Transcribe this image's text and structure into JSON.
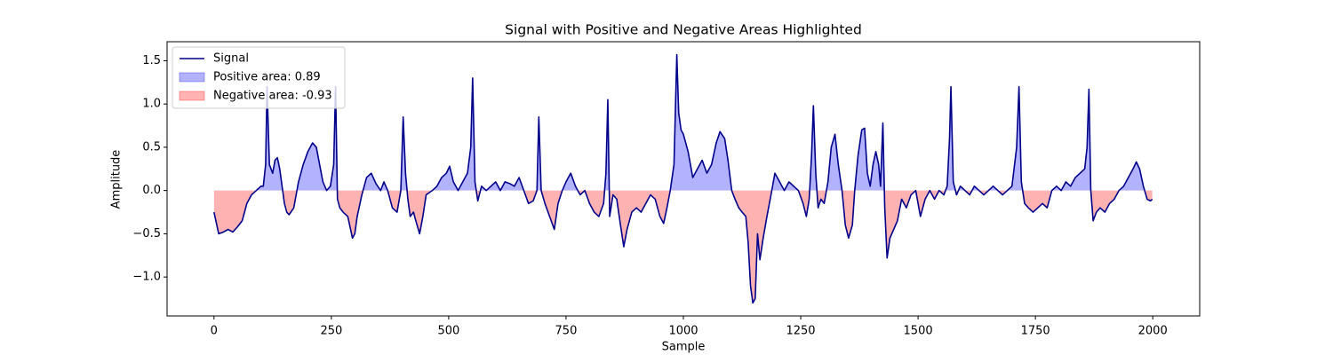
{
  "chart_data": {
    "type": "line",
    "title": "Signal with Positive and Negative Areas Highlighted",
    "xlabel": "Sample",
    "ylabel": "Amplitude",
    "x": [
      0,
      10,
      20,
      30,
      40,
      50,
      60,
      70,
      80,
      90,
      100,
      105,
      110,
      113,
      118,
      125,
      130,
      135,
      140,
      145,
      150,
      155,
      160,
      170,
      180,
      190,
      200,
      210,
      218,
      225,
      232,
      240,
      248,
      255,
      259,
      263,
      268,
      275,
      285,
      295,
      300,
      305,
      315,
      325,
      335,
      345,
      355,
      362,
      370,
      380,
      390,
      398,
      403,
      408,
      413,
      418,
      425,
      430,
      438,
      445,
      452,
      465,
      475,
      485,
      495,
      502,
      510,
      520,
      530,
      540,
      547,
      551,
      556,
      562,
      570,
      580,
      590,
      600,
      610,
      620,
      630,
      640,
      650,
      660,
      670,
      680,
      688,
      692,
      697,
      705,
      715,
      725,
      733,
      742,
      750,
      760,
      770,
      780,
      790,
      800,
      810,
      820,
      830,
      835,
      839,
      843,
      850,
      858,
      866,
      873,
      880,
      890,
      900,
      910,
      920,
      930,
      940,
      950,
      958,
      965,
      972,
      980,
      986,
      990,
      995,
      1000,
      1010,
      1020,
      1030,
      1040,
      1050,
      1060,
      1070,
      1078,
      1088,
      1095,
      1103,
      1110,
      1118,
      1125,
      1133,
      1138,
      1143,
      1148,
      1153,
      1158,
      1163,
      1170,
      1178,
      1185,
      1195,
      1205,
      1215,
      1225,
      1235,
      1245,
      1255,
      1262,
      1268,
      1273,
      1277,
      1282,
      1287,
      1293,
      1300,
      1308,
      1315,
      1323,
      1330,
      1338,
      1345,
      1352,
      1360,
      1365,
      1372,
      1380,
      1386,
      1392,
      1398,
      1404,
      1410,
      1416,
      1420,
      1425,
      1429,
      1434,
      1440,
      1448,
      1456,
      1465,
      1475,
      1485,
      1495,
      1505,
      1515,
      1525,
      1535,
      1545,
      1555,
      1562,
      1567,
      1570,
      1575,
      1582,
      1590,
      1600,
      1610,
      1620,
      1630,
      1640,
      1650,
      1660,
      1670,
      1680,
      1690,
      1700,
      1710,
      1715,
      1720,
      1727,
      1735,
      1745,
      1755,
      1765,
      1775,
      1785,
      1795,
      1805,
      1815,
      1825,
      1835,
      1845,
      1855,
      1860,
      1864,
      1868,
      1873,
      1880,
      1888,
      1898,
      1908,
      1918,
      1928,
      1938,
      1948,
      1958,
      1965,
      1972,
      1980,
      1988,
      1995,
      1999
    ],
    "series": [
      {
        "name": "Signal",
        "color": "#00008b",
        "values": [
          -0.25,
          -0.5,
          -0.48,
          -0.45,
          -0.48,
          -0.42,
          -0.35,
          -0.15,
          -0.05,
          0.0,
          0.05,
          0.05,
          0.3,
          1.2,
          0.3,
          0.2,
          0.35,
          0.38,
          0.25,
          0.05,
          -0.15,
          -0.25,
          -0.28,
          -0.2,
          0.1,
          0.3,
          0.45,
          0.55,
          0.5,
          0.3,
          0.1,
          0.0,
          0.05,
          0.3,
          1.2,
          -0.1,
          -0.2,
          -0.25,
          -0.3,
          -0.55,
          -0.5,
          -0.3,
          -0.05,
          0.15,
          0.2,
          0.08,
          0.0,
          0.1,
          0.0,
          -0.2,
          -0.25,
          0.0,
          0.85,
          0.2,
          -0.1,
          -0.3,
          -0.25,
          -0.35,
          -0.5,
          -0.3,
          -0.05,
          0.0,
          0.05,
          0.15,
          0.2,
          0.28,
          0.1,
          0.0,
          0.1,
          0.2,
          0.5,
          1.3,
          0.1,
          -0.12,
          0.05,
          0.0,
          0.05,
          0.1,
          0.0,
          0.1,
          0.08,
          0.05,
          0.15,
          0.0,
          -0.15,
          -0.12,
          0.0,
          0.85,
          0.0,
          -0.15,
          -0.3,
          -0.45,
          -0.15,
          0.0,
          0.1,
          0.2,
          0.05,
          -0.05,
          0.0,
          -0.15,
          -0.25,
          -0.3,
          -0.15,
          0.2,
          1.05,
          -0.3,
          -0.05,
          -0.1,
          -0.4,
          -0.65,
          -0.45,
          -0.25,
          -0.2,
          -0.25,
          -0.15,
          -0.05,
          -0.1,
          -0.3,
          -0.38,
          -0.2,
          0.0,
          0.3,
          1.57,
          0.9,
          0.7,
          0.65,
          0.45,
          0.15,
          0.25,
          0.35,
          0.2,
          0.3,
          0.55,
          0.68,
          0.6,
          0.35,
          0.0,
          -0.1,
          -0.2,
          -0.25,
          -0.3,
          -0.6,
          -1.1,
          -1.3,
          -1.25,
          -0.5,
          -0.8,
          -0.55,
          -0.3,
          -0.1,
          0.2,
          0.1,
          0.0,
          0.1,
          0.05,
          0.0,
          -0.15,
          -0.3,
          -0.1,
          0.4,
          0.98,
          0.2,
          -0.2,
          -0.1,
          -0.15,
          0.1,
          0.5,
          0.65,
          0.3,
          0.0,
          -0.4,
          -0.55,
          -0.4,
          0.0,
          0.4,
          0.7,
          0.72,
          0.2,
          0.05,
          0.3,
          0.45,
          0.3,
          0.05,
          0.78,
          -0.2,
          -0.78,
          -0.55,
          -0.45,
          -0.35,
          -0.1,
          -0.2,
          -0.05,
          0.0,
          -0.3,
          -0.1,
          0.0,
          -0.1,
          0.0,
          -0.05,
          0.05,
          0.6,
          1.2,
          0.1,
          -0.05,
          0.05,
          0.0,
          -0.05,
          0.05,
          0.0,
          -0.05,
          0.0,
          0.05,
          0.0,
          -0.05,
          0.0,
          0.05,
          0.5,
          1.2,
          0.1,
          -0.15,
          -0.2,
          -0.25,
          -0.2,
          -0.15,
          -0.2,
          0.0,
          0.05,
          0.0,
          0.1,
          0.05,
          0.15,
          0.2,
          0.25,
          0.5,
          1.17,
          0.0,
          -0.35,
          -0.25,
          -0.2,
          -0.25,
          -0.15,
          -0.1,
          0.0,
          0.05,
          0.15,
          0.25,
          0.33,
          0.25,
          0.05,
          -0.1,
          -0.12,
          -0.1
        ]
      }
    ],
    "areas": [
      {
        "name": "Positive area: 0.89",
        "color": "blue",
        "alpha": 0.3
      },
      {
        "name": "Negative area: -0.93",
        "color": "red",
        "alpha": 0.3
      }
    ],
    "xlim": [
      -100,
      2100
    ],
    "xticks": [
      0,
      250,
      500,
      750,
      1000,
      1250,
      1500,
      1750,
      2000
    ],
    "ylim": [
      -1.45,
      1.72
    ],
    "yticks": [
      {
        "value": -1.0,
        "label": "−1.0"
      },
      {
        "value": -0.5,
        "label": "−0.5"
      },
      {
        "value": 0.0,
        "label": "0.0"
      },
      {
        "value": 0.5,
        "label": "0.5"
      },
      {
        "value": 1.0,
        "label": "1.0"
      },
      {
        "value": 1.5,
        "label": "1.5"
      }
    ],
    "grid": false,
    "legend": "upper left"
  }
}
